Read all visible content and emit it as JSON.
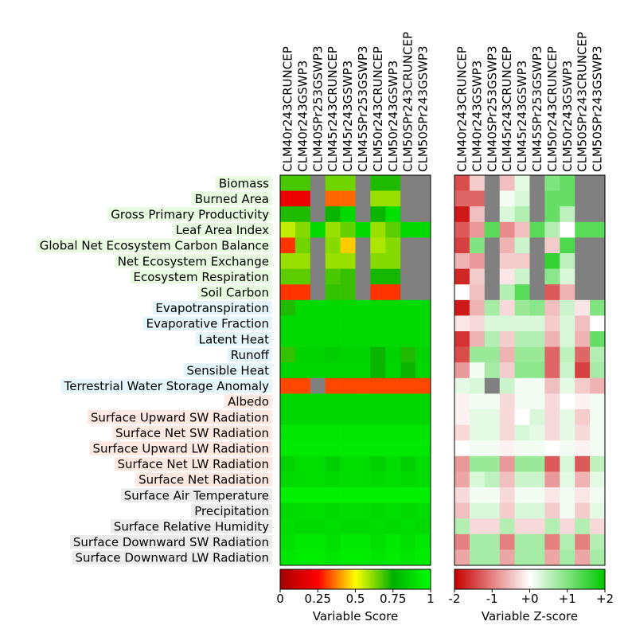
{
  "chart_data": {
    "type": "heatmap",
    "models": [
      "CLM40r243CRUNCEP",
      "CLM40r243GSWP3",
      "CLM40SPr253GSWP3",
      "CLM45r243CRUNCEP",
      "CLM45r243GSWP3",
      "CLM45SPr253GSWP3",
      "CLM50r243CRUNCEP",
      "CLM50r243GSWP3",
      "CLM50SPr243CRUNCEP",
      "CLM50SPr243GSWP3"
    ],
    "variables": [
      {
        "name": "Biomass",
        "group": "ecosystem"
      },
      {
        "name": "Burned Area",
        "group": "ecosystem"
      },
      {
        "name": "Gross Primary Productivity",
        "group": "ecosystem"
      },
      {
        "name": "Leaf Area Index",
        "group": "ecosystem"
      },
      {
        "name": "Global Net Ecosystem Carbon Balance",
        "group": "ecosystem"
      },
      {
        "name": "Net Ecosystem Exchange",
        "group": "ecosystem"
      },
      {
        "name": "Ecosystem Respiration",
        "group": "ecosystem"
      },
      {
        "name": "Soil Carbon",
        "group": "ecosystem"
      },
      {
        "name": "Evapotranspiration",
        "group": "hydrology"
      },
      {
        "name": "Evaporative Fraction",
        "group": "hydrology"
      },
      {
        "name": "Latent Heat",
        "group": "hydrology"
      },
      {
        "name": "Runoff",
        "group": "hydrology"
      },
      {
        "name": "Sensible Heat",
        "group": "hydrology"
      },
      {
        "name": "Terrestrial Water Storage Anomaly",
        "group": "hydrology"
      },
      {
        "name": "Albedo",
        "group": "radiation"
      },
      {
        "name": "Surface Upward SW Radiation",
        "group": "radiation"
      },
      {
        "name": "Surface Net SW Radiation",
        "group": "radiation"
      },
      {
        "name": "Surface Upward LW Radiation",
        "group": "radiation"
      },
      {
        "name": "Surface Net LW Radiation",
        "group": "radiation"
      },
      {
        "name": "Surface Net Radiation",
        "group": "radiation"
      },
      {
        "name": "Surface Air Temperature",
        "group": "forcing"
      },
      {
        "name": "Precipitation",
        "group": "forcing"
      },
      {
        "name": "Surface Relative Humidity",
        "group": "forcing"
      },
      {
        "name": "Surface Downward SW Radiation",
        "group": "forcing"
      },
      {
        "name": "Surface Downward LW Radiation",
        "group": "forcing"
      }
    ],
    "group_colors": {
      "ecosystem": "#e8fae0",
      "hydrology": "#e4f6fc",
      "radiation": "#fde9e2",
      "forcing": "#ececec"
    },
    "missing_color": "#808080",
    "scores": [
      [
        0.68,
        0.68,
        null,
        0.64,
        0.64,
        null,
        0.72,
        0.72,
        null,
        null
      ],
      [
        0.2,
        0.2,
        null,
        0.35,
        0.35,
        null,
        0.6,
        0.6,
        null,
        null
      ],
      [
        0.72,
        0.72,
        null,
        0.74,
        0.88,
        null,
        0.74,
        0.9,
        null,
        null
      ],
      [
        0.56,
        0.62,
        0.88,
        0.6,
        0.65,
        0.88,
        0.6,
        0.66,
        0.88,
        0.88
      ],
      [
        0.3,
        0.64,
        null,
        0.62,
        0.45,
        null,
        0.58,
        0.62,
        null,
        null
      ],
      [
        0.6,
        0.6,
        null,
        0.6,
        0.6,
        null,
        0.62,
        0.62,
        null,
        null
      ],
      [
        0.66,
        0.66,
        null,
        0.68,
        0.7,
        null,
        0.73,
        0.73,
        null,
        null
      ],
      [
        0.3,
        0.3,
        null,
        0.7,
        0.7,
        null,
        0.3,
        0.3,
        null,
        null
      ],
      [
        0.72,
        0.88,
        0.88,
        0.88,
        0.88,
        0.88,
        0.88,
        0.88,
        0.88,
        0.88
      ],
      [
        0.88,
        0.88,
        0.88,
        0.88,
        0.88,
        0.88,
        0.88,
        0.88,
        0.88,
        0.88
      ],
      [
        0.88,
        0.88,
        0.88,
        0.88,
        0.88,
        0.88,
        0.88,
        0.88,
        0.88,
        0.88
      ],
      [
        0.7,
        0.86,
        0.86,
        0.84,
        0.86,
        0.86,
        0.74,
        0.86,
        0.72,
        0.86
      ],
      [
        0.87,
        0.87,
        0.87,
        0.87,
        0.87,
        0.87,
        0.74,
        0.87,
        0.74,
        0.87
      ],
      [
        0.32,
        0.32,
        null,
        0.32,
        0.32,
        0.32,
        0.32,
        0.32,
        0.32,
        0.32
      ],
      [
        0.87,
        0.87,
        0.87,
        0.87,
        0.87,
        0.87,
        0.87,
        0.87,
        0.87,
        0.87
      ],
      [
        0.87,
        0.87,
        0.87,
        0.87,
        0.87,
        0.87,
        0.87,
        0.87,
        0.87,
        0.87
      ],
      [
        0.92,
        0.92,
        0.92,
        0.92,
        0.92,
        0.92,
        0.92,
        0.92,
        0.92,
        0.92
      ],
      [
        0.93,
        0.93,
        0.93,
        0.93,
        0.93,
        0.93,
        0.93,
        0.93,
        0.93,
        0.93
      ],
      [
        0.86,
        0.89,
        0.89,
        0.85,
        0.89,
        0.89,
        0.85,
        0.89,
        0.85,
        0.89
      ],
      [
        0.88,
        0.89,
        0.89,
        0.88,
        0.89,
        0.89,
        0.88,
        0.89,
        0.88,
        0.89
      ],
      [
        0.95,
        0.95,
        0.95,
        0.95,
        0.95,
        0.95,
        0.95,
        0.95,
        0.95,
        0.95
      ],
      [
        0.88,
        0.89,
        0.89,
        0.88,
        0.89,
        0.89,
        0.88,
        0.89,
        0.88,
        0.89
      ],
      [
        0.89,
        0.88,
        0.88,
        0.89,
        0.88,
        0.88,
        0.89,
        0.88,
        0.89,
        0.88
      ],
      [
        0.9,
        0.93,
        0.93,
        0.9,
        0.93,
        0.93,
        0.9,
        0.93,
        0.9,
        0.93
      ],
      [
        0.92,
        0.94,
        0.94,
        0.92,
        0.94,
        0.94,
        0.92,
        0.94,
        0.92,
        0.94
      ]
    ],
    "zscores": [
      [
        -1.4,
        -0.4,
        null,
        -0.5,
        0.2,
        null,
        1.0,
        1.2,
        null,
        null
      ],
      [
        -1.2,
        -1.2,
        null,
        0.1,
        0.3,
        null,
        1.2,
        1.2,
        null,
        null
      ],
      [
        -1.8,
        -0.5,
        null,
        0.3,
        0.6,
        null,
        1.2,
        0.5,
        null,
        null
      ],
      [
        -1.3,
        -0.8,
        1.3,
        -0.9,
        -0.5,
        1.3,
        0.6,
        0.0,
        1.3,
        1.3
      ],
      [
        -1.5,
        1.0,
        null,
        -0.6,
        0.4,
        null,
        -0.4,
        1.4,
        null,
        null
      ],
      [
        -0.6,
        -0.8,
        null,
        -0.4,
        -0.4,
        null,
        1.6,
        0.5,
        null,
        null
      ],
      [
        -1.7,
        -0.4,
        null,
        -0.2,
        0.4,
        null,
        0.9,
        0.3,
        null,
        null
      ],
      [
        0.0,
        -0.5,
        null,
        0.6,
        1.3,
        null,
        -1.3,
        -0.6,
        null,
        null
      ],
      [
        -1.8,
        -0.6,
        0.7,
        -0.3,
        0.8,
        0.9,
        -0.5,
        0.4,
        -0.2,
        1.0
      ],
      [
        -0.2,
        -0.3,
        0.3,
        0.3,
        0.3,
        0.3,
        -0.4,
        0.3,
        -0.5,
        0.0
      ],
      [
        -1.6,
        -0.6,
        0.6,
        -0.4,
        0.6,
        0.6,
        -0.6,
        0.3,
        -0.6,
        1.2
      ],
      [
        -1.4,
        0.8,
        0.8,
        -0.6,
        0.8,
        0.8,
        -1.2,
        0.5,
        -1.2,
        0.6
      ],
      [
        -0.8,
        0.1,
        0.7,
        -0.4,
        0.9,
        0.9,
        -1.2,
        0.4,
        -1.5,
        0.7
      ],
      [
        0.2,
        0.3,
        null,
        0.4,
        0.1,
        0.1,
        -0.5,
        0.2,
        -0.4,
        -0.6
      ],
      [
        -0.1,
        0.1,
        0.1,
        -0.3,
        0.1,
        0.1,
        -0.3,
        0.0,
        -0.1,
        0.1
      ],
      [
        -0.1,
        0.2,
        0.2,
        -0.3,
        0.0,
        0.3,
        -0.3,
        0.2,
        -0.4,
        0.1
      ],
      [
        -0.3,
        0.2,
        0.2,
        -0.3,
        0.3,
        0.2,
        -0.3,
        0.2,
        -0.3,
        0.1
      ],
      [
        0.0,
        0.1,
        0.1,
        -0.1,
        0.1,
        0.1,
        0.0,
        0.1,
        -0.1,
        0.1
      ],
      [
        -0.8,
        0.8,
        0.8,
        -0.8,
        0.8,
        0.8,
        -1.3,
        0.3,
        -1.3,
        0.5
      ],
      [
        -0.7,
        0.3,
        0.5,
        -0.5,
        0.4,
        0.4,
        -0.8,
        0.2,
        -0.6,
        0.2
      ],
      [
        -0.3,
        0.1,
        0.1,
        -0.3,
        0.1,
        0.1,
        -0.2,
        0.1,
        -0.2,
        0.1
      ],
      [
        -0.5,
        0.3,
        0.3,
        -0.4,
        0.3,
        0.3,
        -0.4,
        0.1,
        -0.4,
        0.2
      ],
      [
        0.6,
        -0.3,
        -0.3,
        0.6,
        -0.3,
        -0.3,
        0.6,
        -0.3,
        0.6,
        -0.3
      ],
      [
        -1.0,
        0.7,
        0.7,
        -1.0,
        0.7,
        0.7,
        -1.0,
        0.6,
        -1.0,
        0.6
      ],
      [
        -0.7,
        0.7,
        0.7,
        -0.7,
        0.7,
        0.7,
        -0.7,
        0.7,
        -0.7,
        0.7
      ]
    ],
    "score_colorbar": {
      "label": "Variable Score",
      "range": [
        0,
        1
      ],
      "ticks": [
        0,
        0.25,
        0.5,
        0.75,
        1
      ],
      "tick_labels": [
        "0",
        "0.25",
        "0.5",
        "0.75",
        "1"
      ],
      "colors": [
        "#a50000",
        "#ff0000",
        "#ffff00",
        "#00b200",
        "#00ff00"
      ]
    },
    "zscore_colorbar": {
      "label": "Variable Z-score",
      "range": [
        -2,
        2
      ],
      "ticks": [
        -2,
        -1,
        0,
        1,
        2
      ],
      "tick_labels": [
        "-2",
        "-1",
        "+0",
        "+1",
        "+2"
      ],
      "colors": [
        "#c80000",
        "#ffffff",
        "#00c800"
      ]
    }
  }
}
